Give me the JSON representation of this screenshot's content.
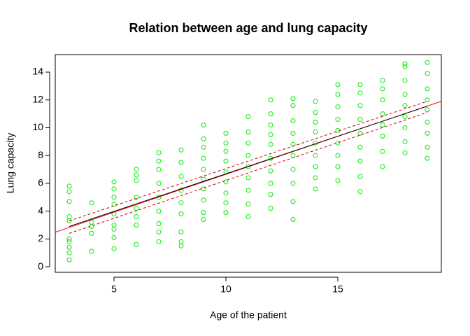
{
  "chart_data": {
    "type": "scatter",
    "title": "Relation between age and lung capacity",
    "x_label": "Age of the patient",
    "y_label": "Lung capacity",
    "xlim": [
      2.375,
      19.625
    ],
    "ylim": [
      -0.4,
      15.26
    ],
    "xticks": [
      5,
      10,
      15
    ],
    "yticks": [
      0,
      2,
      4,
      6,
      8,
      10,
      12,
      14
    ],
    "point_color": "#00ee00",
    "groups": [
      {
        "x": 3,
        "y": [
          0.5,
          1.0,
          1.4,
          1.8,
          2.0,
          3.3,
          3.6,
          4.7,
          5.4,
          5.8
        ]
      },
      {
        "x": 4,
        "y": [
          1.1,
          2.4,
          2.9,
          3.2,
          4.6
        ]
      },
      {
        "x": 5,
        "y": [
          1.3,
          2.1,
          2.7,
          3.0,
          3.8,
          4.5,
          5.0,
          5.6,
          6.1
        ]
      },
      {
        "x": 6,
        "y": [
          1.6,
          3.0,
          3.6,
          4.2,
          5.0,
          6.2,
          6.6,
          7.0
        ]
      },
      {
        "x": 7,
        "y": [
          1.8,
          2.5,
          3.1,
          4.0,
          5.0,
          6.0,
          7.0,
          7.6,
          8.2
        ]
      },
      {
        "x": 8,
        "y": [
          1.5,
          1.8,
          2.5,
          3.8,
          4.6,
          5.5,
          6.5,
          7.5,
          8.4
        ]
      },
      {
        "x": 9,
        "y": [
          3.4,
          3.9,
          4.8,
          5.6,
          6.3,
          7.0,
          7.8,
          8.6,
          9.2,
          10.2
        ]
      },
      {
        "x": 10,
        "y": [
          3.9,
          4.6,
          5.3,
          6.1,
          6.8,
          7.6,
          8.3,
          8.9,
          9.6
        ]
      },
      {
        "x": 11,
        "y": [
          3.6,
          4.5,
          5.5,
          6.4,
          7.2,
          8.0,
          8.9,
          9.7,
          10.8
        ]
      },
      {
        "x": 12,
        "y": [
          4.2,
          5.2,
          6.0,
          6.9,
          7.8,
          8.8,
          9.5,
          10.2,
          11.0,
          12.0
        ]
      },
      {
        "x": 13,
        "y": [
          3.4,
          4.7,
          6.0,
          7.0,
          8.0,
          8.8,
          9.6,
          10.5,
          11.6,
          12.1
        ]
      },
      {
        "x": 14,
        "y": [
          5.6,
          6.4,
          7.2,
          8.0,
          8.9,
          9.7,
          10.4,
          11.1,
          11.9
        ]
      },
      {
        "x": 15,
        "y": [
          6.2,
          7.2,
          8.0,
          8.9,
          9.8,
          10.6,
          11.5,
          12.4,
          13.1
        ]
      },
      {
        "x": 16,
        "y": [
          5.4,
          6.5,
          7.6,
          8.6,
          9.6,
          10.6,
          11.6,
          12.5,
          13.1
        ]
      },
      {
        "x": 17,
        "y": [
          7.2,
          8.3,
          9.4,
          10.2,
          11.0,
          12.0,
          12.8,
          13.4
        ]
      },
      {
        "x": 18,
        "y": [
          8.2,
          9.0,
          10.0,
          10.8,
          11.6,
          12.4,
          13.4,
          14.4,
          14.6
        ]
      },
      {
        "x": 19,
        "y": [
          7.8,
          8.6,
          9.6,
          10.4,
          11.3,
          12.0,
          12.8,
          13.9,
          14.7
        ]
      }
    ],
    "lines": [
      {
        "color": "#ff0000",
        "dashed": false,
        "x": [
          2.375,
          19.625
        ],
        "y": [
          2.49,
          11.9
        ]
      },
      {
        "color": "#000000",
        "dashed": false,
        "x": [
          3,
          19
        ],
        "y": [
          2.9,
          11.55
        ]
      },
      {
        "color": "#cc0000",
        "dashed": true,
        "x": [
          3,
          19
        ],
        "y": [
          2.4,
          11.1
        ]
      },
      {
        "color": "#cc0000",
        "dashed": true,
        "x": [
          3,
          19
        ],
        "y": [
          3.3,
          11.9
        ]
      }
    ]
  }
}
